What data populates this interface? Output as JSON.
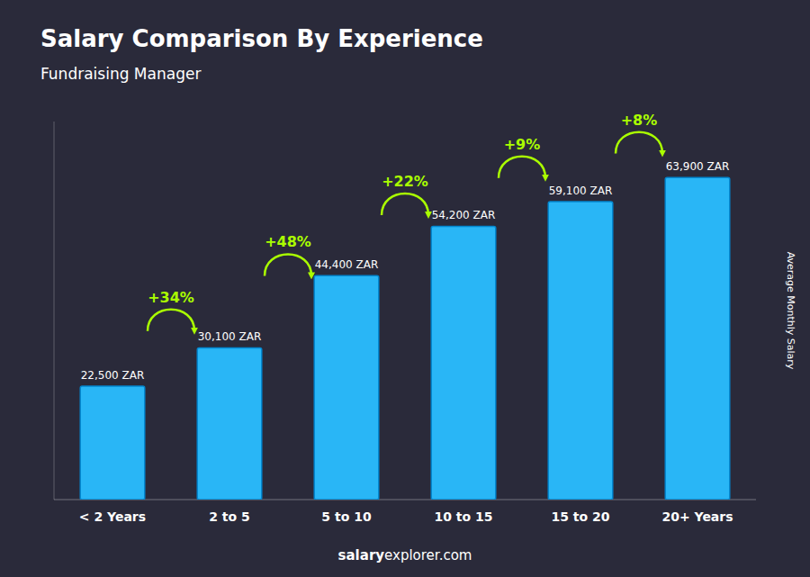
{
  "chart_data": {
    "type": "bar",
    "title": "Salary Comparison By Experience",
    "subtitle": "Fundraising Manager",
    "ylabel": "Average Monthly Salary",
    "categories": [
      "< 2 Years",
      "2 to 5",
      "5 to 10",
      "10 to 15",
      "15 to 20",
      "20+ Years"
    ],
    "values": [
      22500,
      30100,
      44400,
      54200,
      59100,
      63900
    ],
    "value_labels": [
      "22,500 ZAR",
      "30,100 ZAR",
      "44,400 ZAR",
      "54,200 ZAR",
      "59,100 ZAR",
      "63,900 ZAR"
    ],
    "data_labels": true,
    "annotations": [
      "+34%",
      "+48%",
      "+22%",
      "+9%",
      "+8%"
    ],
    "footer": [
      "salary",
      "explorer.com"
    ],
    "color": "#29b6f6",
    "ylim": [
      0,
      75000
    ],
    "yticks": [],
    "tick_labels": "x",
    "grid": false
  }
}
